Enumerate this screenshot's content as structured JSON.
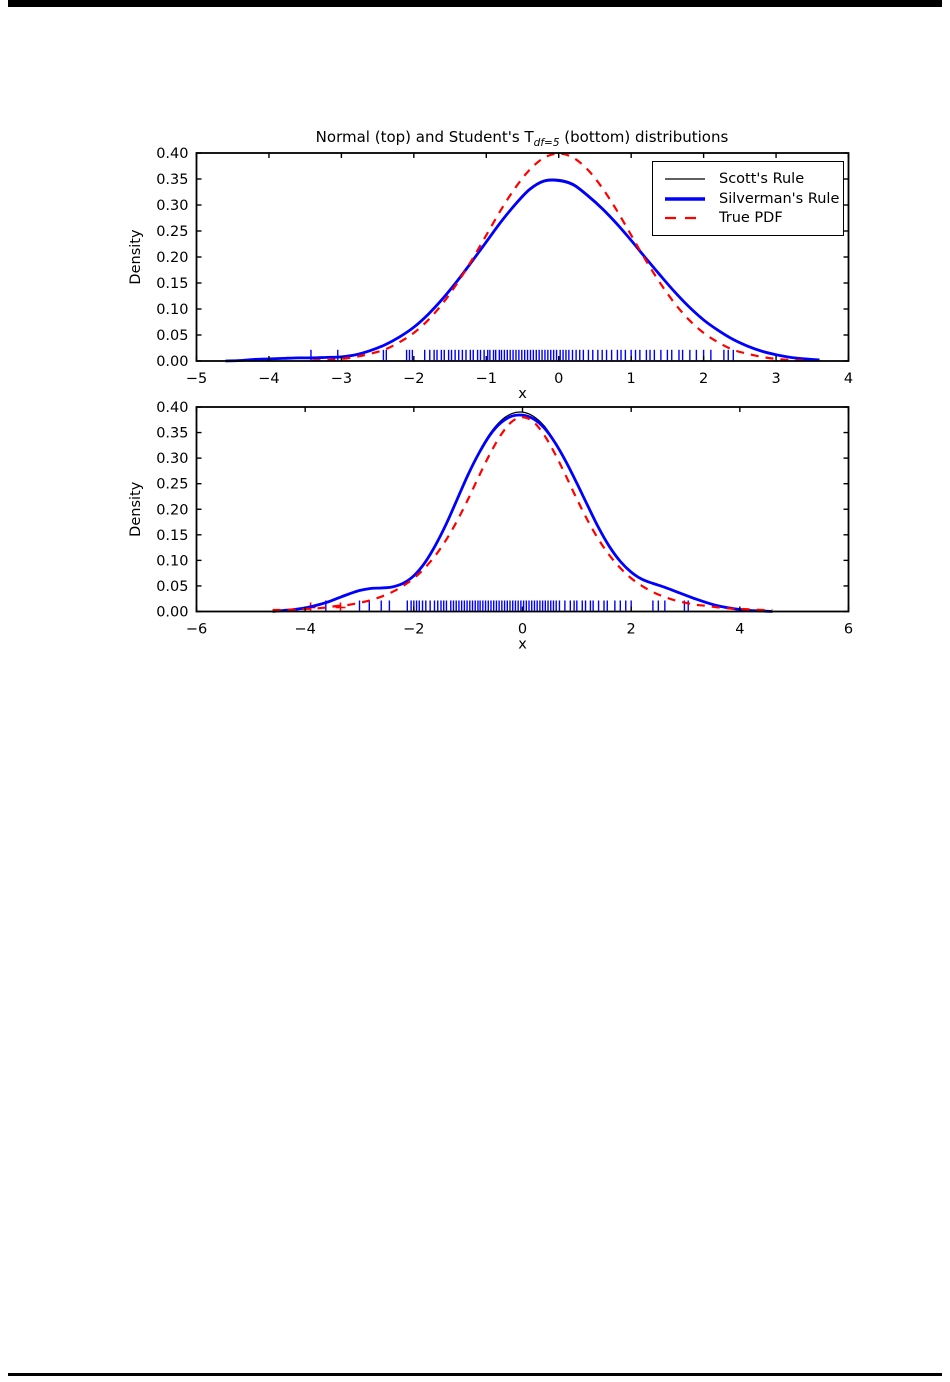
{
  "page": {
    "background": "#ffffff",
    "top_rule_color": "#000000",
    "bottom_rule_color": "#000000"
  },
  "figure": {
    "title": {
      "prefix": "Normal (top) and Student's T",
      "subscript": "df=5",
      "suffix": " (bottom) distributions"
    },
    "legend": {
      "position": "upper right",
      "entries": [
        {
          "label": "Scott's Rule",
          "color": "#000000",
          "style": "solid",
          "width": 1.3
        },
        {
          "label": "Silverman's Rule",
          "color": "#0000ff",
          "style": "solid",
          "width": 3.5
        },
        {
          "label": "True PDF",
          "color": "#ff0000",
          "style": "dashed",
          "width": 2.2
        }
      ]
    }
  },
  "chart_data": [
    {
      "type": "line",
      "subplot": "top",
      "title": "Normal distribution KDE",
      "xlabel": "x",
      "ylabel": "Density",
      "xlim": [
        -5,
        4
      ],
      "ylim": [
        0,
        0.4
      ],
      "grid": false,
      "xticks": {
        "values": [
          -5,
          -4,
          -3,
          -2,
          -1,
          0,
          1,
          2,
          3,
          4
        ],
        "labels": [
          "−5",
          "−4",
          "−3",
          "−2",
          "−1",
          "0",
          "1",
          "2",
          "3",
          "4"
        ]
      },
      "yticks": {
        "values": [
          0,
          0.05,
          0.1,
          0.15,
          0.2,
          0.25,
          0.3,
          0.35,
          0.4
        ],
        "labels": [
          "0.00",
          "0.05",
          "0.10",
          "0.15",
          "0.20",
          "0.25",
          "0.30",
          "0.35",
          "0.40"
        ]
      },
      "series": [
        {
          "name": "Scott's Rule",
          "color": "#000000",
          "width": 1.2,
          "dash": null,
          "x": [
            -4.6,
            -4.4,
            -4.2,
            -4.0,
            -3.8,
            -3.6,
            -3.4,
            -3.2,
            -3.0,
            -2.8,
            -2.6,
            -2.4,
            -2.2,
            -2.0,
            -1.8,
            -1.6,
            -1.4,
            -1.2,
            -1.0,
            -0.8,
            -0.6,
            -0.4,
            -0.2,
            0.0,
            0.2,
            0.4,
            0.6,
            0.8,
            1.0,
            1.2,
            1.4,
            1.6,
            1.8,
            2.0,
            2.2,
            2.4,
            2.6,
            2.8,
            3.0,
            3.2,
            3.4,
            3.6
          ],
          "y": [
            0.0,
            0.001,
            0.003,
            0.004,
            0.005,
            0.006,
            0.006,
            0.007,
            0.008,
            0.012,
            0.02,
            0.031,
            0.046,
            0.065,
            0.09,
            0.12,
            0.154,
            0.191,
            0.229,
            0.267,
            0.303,
            0.332,
            0.348,
            0.349,
            0.341,
            0.32,
            0.295,
            0.266,
            0.233,
            0.199,
            0.166,
            0.134,
            0.105,
            0.08,
            0.059,
            0.042,
            0.029,
            0.019,
            0.012,
            0.007,
            0.004,
            0.002
          ]
        },
        {
          "name": "Silverman's Rule",
          "color": "#0000ff",
          "width": 2.8,
          "dash": null,
          "x": [
            -4.6,
            -4.4,
            -4.2,
            -4.0,
            -3.8,
            -3.6,
            -3.4,
            -3.2,
            -3.0,
            -2.8,
            -2.6,
            -2.4,
            -2.2,
            -2.0,
            -1.8,
            -1.6,
            -1.4,
            -1.2,
            -1.0,
            -0.8,
            -0.6,
            -0.4,
            -0.2,
            0.0,
            0.2,
            0.4,
            0.6,
            0.8,
            1.0,
            1.2,
            1.4,
            1.6,
            1.8,
            2.0,
            2.2,
            2.4,
            2.6,
            2.8,
            3.0,
            3.2,
            3.4,
            3.6
          ],
          "y": [
            0.0,
            0.001,
            0.003,
            0.004,
            0.005,
            0.006,
            0.006,
            0.007,
            0.008,
            0.012,
            0.02,
            0.031,
            0.046,
            0.065,
            0.09,
            0.12,
            0.154,
            0.191,
            0.229,
            0.267,
            0.301,
            0.33,
            0.346,
            0.347,
            0.339,
            0.318,
            0.293,
            0.264,
            0.232,
            0.198,
            0.165,
            0.133,
            0.104,
            0.079,
            0.059,
            0.042,
            0.029,
            0.019,
            0.012,
            0.007,
            0.004,
            0.002
          ]
        },
        {
          "name": "True PDF",
          "color": "#ff0000",
          "width": 2.2,
          "dash": [
            8,
            7
          ],
          "x": [
            -3.4,
            -3.2,
            -3.0,
            -2.8,
            -2.6,
            -2.4,
            -2.2,
            -2.0,
            -1.8,
            -1.6,
            -1.4,
            -1.2,
            -1.0,
            -0.8,
            -0.6,
            -0.4,
            -0.2,
            0.0,
            0.2,
            0.4,
            0.6,
            0.8,
            1.0,
            1.2,
            1.4,
            1.6,
            1.8,
            2.0,
            2.2,
            2.4,
            2.6,
            2.8,
            3.0,
            3.2,
            3.4
          ],
          "y": [
            0.001,
            0.002,
            0.004,
            0.008,
            0.014,
            0.022,
            0.036,
            0.054,
            0.079,
            0.111,
            0.15,
            0.194,
            0.242,
            0.29,
            0.333,
            0.368,
            0.391,
            0.399,
            0.391,
            0.368,
            0.333,
            0.29,
            0.242,
            0.194,
            0.15,
            0.111,
            0.079,
            0.054,
            0.036,
            0.022,
            0.014,
            0.008,
            0.004,
            0.002,
            0.001
          ]
        }
      ],
      "rug": {
        "color": "#0000ff",
        "height": 0.02,
        "x": [
          -3.42,
          -3.05,
          -2.42,
          -2.38,
          -2.1,
          -2.06,
          -2.02,
          -1.85,
          -1.78,
          -1.72,
          -1.68,
          -1.62,
          -1.58,
          -1.52,
          -1.48,
          -1.43,
          -1.38,
          -1.33,
          -1.28,
          -1.22,
          -1.18,
          -1.12,
          -1.08,
          -1.03,
          -0.98,
          -0.95,
          -0.9,
          -0.87,
          -0.82,
          -0.79,
          -0.75,
          -0.71,
          -0.67,
          -0.63,
          -0.59,
          -0.55,
          -0.51,
          -0.47,
          -0.43,
          -0.39,
          -0.35,
          -0.31,
          -0.27,
          -0.23,
          -0.19,
          -0.15,
          -0.11,
          -0.07,
          -0.03,
          0.02,
          0.06,
          0.1,
          0.14,
          0.19,
          0.24,
          0.29,
          0.34,
          0.41,
          0.47,
          0.54,
          0.6,
          0.66,
          0.73,
          0.81,
          0.86,
          0.92,
          1.0,
          1.06,
          1.12,
          1.21,
          1.26,
          1.32,
          1.41,
          1.5,
          1.56,
          1.66,
          1.71,
          1.81,
          1.9,
          2.0,
          2.1,
          2.28,
          2.34,
          2.41
        ]
      }
    },
    {
      "type": "line",
      "subplot": "bottom",
      "title": "Student's T df=5 distribution KDE",
      "xlabel": "x",
      "ylabel": "Density",
      "xlim": [
        -6,
        6
      ],
      "ylim": [
        0,
        0.4
      ],
      "grid": false,
      "xticks": {
        "values": [
          -6,
          -4,
          -2,
          0,
          2,
          4,
          6
        ],
        "labels": [
          "−6",
          "−4",
          "−2",
          "0",
          "2",
          "4",
          "6"
        ]
      },
      "yticks": {
        "values": [
          0,
          0.05,
          0.1,
          0.15,
          0.2,
          0.25,
          0.3,
          0.35,
          0.4
        ],
        "labels": [
          "0.00",
          "0.05",
          "0.10",
          "0.15",
          "0.20",
          "0.25",
          "0.30",
          "0.35",
          "0.40"
        ]
      },
      "series": [
        {
          "name": "Scott's Rule",
          "color": "#000000",
          "width": 1.2,
          "dash": null,
          "x": [
            -4.6,
            -4.4,
            -4.2,
            -4.0,
            -3.8,
            -3.6,
            -3.4,
            -3.2,
            -3.0,
            -2.8,
            -2.6,
            -2.4,
            -2.2,
            -2.0,
            -1.8,
            -1.6,
            -1.4,
            -1.2,
            -1.0,
            -0.8,
            -0.6,
            -0.4,
            -0.2,
            0.0,
            0.2,
            0.4,
            0.6,
            0.8,
            1.0,
            1.2,
            1.4,
            1.6,
            1.8,
            2.0,
            2.2,
            2.4,
            2.6,
            2.8,
            3.0,
            3.2,
            3.4,
            3.6,
            3.8,
            4.0,
            4.2,
            4.4,
            4.6
          ],
          "y": [
            0.0,
            0.002,
            0.004,
            0.007,
            0.012,
            0.018,
            0.026,
            0.034,
            0.041,
            0.045,
            0.046,
            0.048,
            0.055,
            0.07,
            0.095,
            0.13,
            0.172,
            0.22,
            0.268,
            0.312,
            0.348,
            0.373,
            0.387,
            0.39,
            0.382,
            0.363,
            0.332,
            0.295,
            0.252,
            0.208,
            0.165,
            0.128,
            0.098,
            0.077,
            0.063,
            0.055,
            0.048,
            0.04,
            0.032,
            0.024,
            0.017,
            0.011,
            0.007,
            0.004,
            0.002,
            0.001,
            0.0
          ]
        },
        {
          "name": "Silverman's Rule",
          "color": "#0000ff",
          "width": 2.8,
          "dash": null,
          "x": [
            -4.6,
            -4.4,
            -4.2,
            -4.0,
            -3.8,
            -3.6,
            -3.4,
            -3.2,
            -3.0,
            -2.8,
            -2.6,
            -2.4,
            -2.2,
            -2.0,
            -1.8,
            -1.6,
            -1.4,
            -1.2,
            -1.0,
            -0.8,
            -0.6,
            -0.4,
            -0.2,
            0.0,
            0.2,
            0.4,
            0.6,
            0.8,
            1.0,
            1.2,
            1.4,
            1.6,
            1.8,
            2.0,
            2.2,
            2.4,
            2.6,
            2.8,
            3.0,
            3.2,
            3.4,
            3.6,
            3.8,
            4.0,
            4.2,
            4.4,
            4.6
          ],
          "y": [
            0.0,
            0.002,
            0.004,
            0.007,
            0.012,
            0.018,
            0.026,
            0.034,
            0.041,
            0.045,
            0.046,
            0.048,
            0.055,
            0.07,
            0.095,
            0.13,
            0.172,
            0.22,
            0.268,
            0.31,
            0.345,
            0.369,
            0.382,
            0.384,
            0.377,
            0.359,
            0.33,
            0.293,
            0.251,
            0.207,
            0.164,
            0.127,
            0.098,
            0.077,
            0.063,
            0.055,
            0.048,
            0.04,
            0.032,
            0.024,
            0.017,
            0.011,
            0.007,
            0.004,
            0.002,
            0.001,
            0.0
          ]
        },
        {
          "name": "True PDF",
          "color": "#ff0000",
          "width": 2.2,
          "dash": [
            8,
            7
          ],
          "x": [
            -4.6,
            -4.4,
            -4.2,
            -4.0,
            -3.8,
            -3.6,
            -3.4,
            -3.2,
            -3.0,
            -2.8,
            -2.6,
            -2.4,
            -2.2,
            -2.0,
            -1.8,
            -1.6,
            -1.4,
            -1.2,
            -1.0,
            -0.8,
            -0.6,
            -0.4,
            -0.2,
            0.0,
            0.2,
            0.4,
            0.6,
            0.8,
            1.0,
            1.2,
            1.4,
            1.6,
            1.8,
            2.0,
            2.2,
            2.4,
            2.6,
            2.8,
            3.0,
            3.2,
            3.4,
            3.6,
            3.8,
            4.0,
            4.2,
            4.4,
            4.6
          ],
          "y": [
            0.003,
            0.003,
            0.004,
            0.005,
            0.006,
            0.008,
            0.011,
            0.013,
            0.017,
            0.022,
            0.029,
            0.038,
            0.05,
            0.065,
            0.085,
            0.11,
            0.141,
            0.178,
            0.22,
            0.265,
            0.308,
            0.345,
            0.371,
            0.38,
            0.371,
            0.345,
            0.308,
            0.265,
            0.22,
            0.178,
            0.141,
            0.11,
            0.085,
            0.065,
            0.05,
            0.038,
            0.029,
            0.022,
            0.017,
            0.013,
            0.011,
            0.008,
            0.006,
            0.005,
            0.004,
            0.003,
            0.003
          ]
        }
      ],
      "rug": {
        "color": "#0000ff",
        "height": 0.02,
        "x": [
          -3.62,
          -3.0,
          -2.82,
          -2.6,
          -2.45,
          -2.12,
          -2.05,
          -2.0,
          -1.95,
          -1.9,
          -1.84,
          -1.78,
          -1.7,
          -1.62,
          -1.56,
          -1.5,
          -1.45,
          -1.4,
          -1.32,
          -1.27,
          -1.22,
          -1.17,
          -1.12,
          -1.07,
          -1.02,
          -0.97,
          -0.92,
          -0.87,
          -0.82,
          -0.78,
          -0.73,
          -0.68,
          -0.63,
          -0.58,
          -0.53,
          -0.48,
          -0.43,
          -0.38,
          -0.33,
          -0.28,
          -0.23,
          -0.18,
          -0.13,
          -0.08,
          -0.03,
          0.02,
          0.07,
          0.12,
          0.17,
          0.22,
          0.27,
          0.32,
          0.37,
          0.42,
          0.47,
          0.52,
          0.57,
          0.62,
          0.68,
          0.78,
          0.88,
          0.95,
          1.0,
          1.1,
          1.16,
          1.25,
          1.3,
          1.4,
          1.5,
          1.56,
          1.7,
          1.8,
          1.9,
          2.0,
          2.4,
          2.5,
          2.62,
          2.98,
          3.05
        ],
        "red_plus": {
          "color": "#ff0000",
          "x": [
            -3.9,
            -3.35
          ]
        }
      }
    }
  ]
}
